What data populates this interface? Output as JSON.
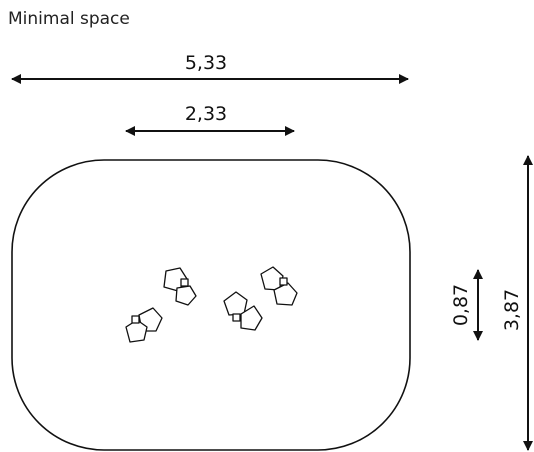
{
  "title": "Minimal space",
  "dimensions": {
    "overall_width": "5,33",
    "inner_width": "2,33",
    "inner_depth": "0,87",
    "overall_depth": "3,87"
  },
  "colors": {
    "line": "#111111",
    "background": "#ffffff"
  }
}
